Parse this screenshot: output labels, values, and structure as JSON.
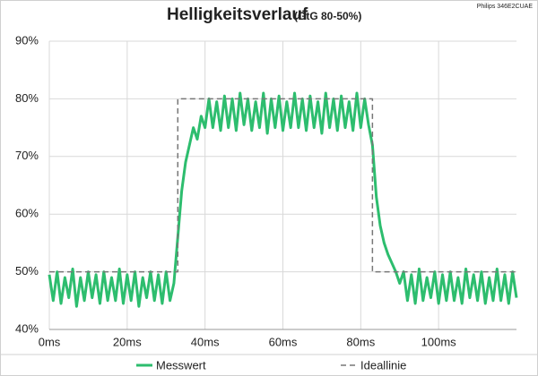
{
  "chart_data": {
    "type": "line",
    "title": "Helligkeitsverlauf",
    "subtitle": "(GtG 80-50%)",
    "note": "Philips 346E2CUAE",
    "x": [
      0,
      1,
      2,
      3,
      4,
      5,
      6,
      7,
      8,
      9,
      10,
      11,
      12,
      13,
      14,
      15,
      16,
      17,
      18,
      19,
      20,
      21,
      22,
      23,
      24,
      25,
      26,
      27,
      28,
      29,
      30,
      31,
      32,
      33,
      34,
      35,
      36,
      37,
      38,
      39,
      40,
      41,
      42,
      43,
      44,
      45,
      46,
      47,
      48,
      49,
      50,
      51,
      52,
      53,
      54,
      55,
      56,
      57,
      58,
      59,
      60,
      61,
      62,
      63,
      64,
      65,
      66,
      67,
      68,
      69,
      70,
      71,
      72,
      73,
      74,
      75,
      76,
      77,
      78,
      79,
      80,
      81,
      82,
      83,
      84,
      85,
      86,
      87,
      88,
      89,
      90,
      91,
      92,
      93,
      94,
      95,
      96,
      97,
      98,
      99,
      100,
      101,
      102,
      103,
      104,
      105,
      106,
      107,
      108,
      109,
      110,
      111,
      112,
      113,
      114,
      115,
      116,
      117,
      118,
      119,
      120
    ],
    "series": [
      {
        "name": "Messwert",
        "color": "#2dbd6e",
        "values": [
          49.5,
          45,
          50,
          44.5,
          49,
          45.5,
          50.5,
          44,
          49,
          45,
          50,
          45.5,
          49.5,
          44.5,
          50,
          45,
          49,
          45,
          50.5,
          44.5,
          49.5,
          45,
          50,
          44,
          49,
          45.5,
          50,
          45,
          49.5,
          44.5,
          50,
          45,
          48,
          56,
          64,
          69,
          72,
          75,
          73,
          77,
          75,
          80,
          75,
          79.5,
          74.5,
          80.5,
          75,
          80,
          74.5,
          81,
          75.5,
          80,
          74.5,
          79.5,
          75,
          81,
          74,
          80,
          75,
          80.5,
          74.5,
          79.5,
          75,
          81,
          75,
          80,
          74.5,
          80.5,
          75,
          79.5,
          74,
          81,
          75,
          80,
          74.5,
          80.5,
          75,
          79.5,
          74.5,
          81,
          75,
          80,
          75.5,
          72,
          63,
          58,
          55,
          53,
          51.5,
          50,
          48,
          50,
          45,
          49.5,
          44.5,
          50.5,
          45,
          49,
          45.5,
          50,
          44.5,
          49.5,
          45,
          50,
          45,
          49,
          44.5,
          50.5,
          45.5,
          49.5,
          45,
          50,
          44.5,
          49,
          45,
          50.5,
          45,
          49.5,
          44.5,
          50,
          45.5
        ]
      },
      {
        "name": "Ideallinie",
        "color": "#777777",
        "dashed": true,
        "x": [
          0,
          33,
          33,
          83,
          83,
          120
        ],
        "values": [
          50,
          50,
          80,
          80,
          50,
          50
        ]
      }
    ],
    "xlim": [
      0,
      120
    ],
    "xticks": [
      {
        "value": 0,
        "label": "0ms"
      },
      {
        "value": 20,
        "label": "20ms"
      },
      {
        "value": 40,
        "label": "40ms"
      },
      {
        "value": 60,
        "label": "60ms"
      },
      {
        "value": 80,
        "label": "80ms"
      },
      {
        "value": 100,
        "label": "100ms"
      }
    ],
    "ylim": [
      40,
      90
    ],
    "yticks": [
      {
        "value": 40,
        "label": "40%"
      },
      {
        "value": 50,
        "label": "50%"
      },
      {
        "value": 60,
        "label": "60%"
      },
      {
        "value": 70,
        "label": "70%"
      },
      {
        "value": 80,
        "label": "80%"
      },
      {
        "value": 90,
        "label": "90%"
      }
    ],
    "grid": true
  }
}
